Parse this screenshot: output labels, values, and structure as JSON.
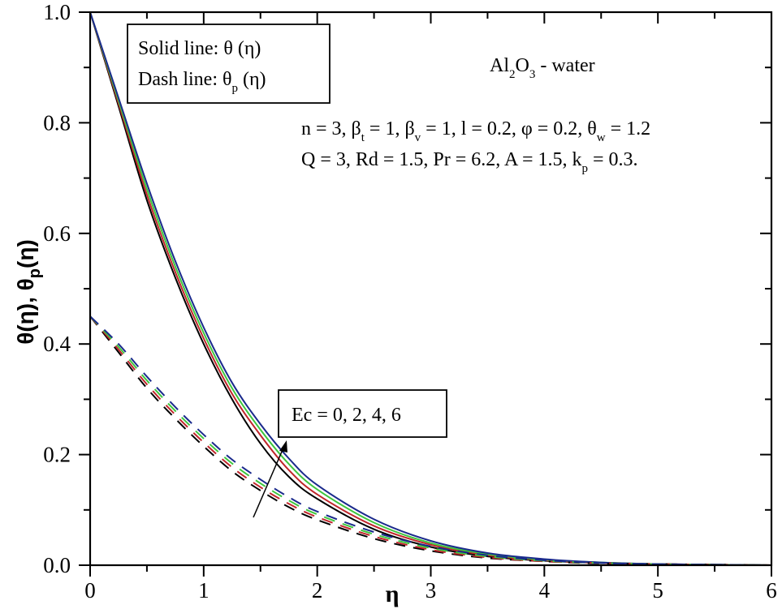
{
  "chart_data": {
    "type": "line",
    "title": "",
    "xlabel": "η",
    "ylabel": "θ(η), θp(η)",
    "xlim": [
      0,
      6
    ],
    "ylim": [
      0.0,
      1.0
    ],
    "x_ticks": [
      "0",
      "1",
      "2",
      "3",
      "4",
      "5",
      "6"
    ],
    "y_ticks": [
      "0.0",
      "0.2",
      "0.4",
      "0.6",
      "0.8",
      "1.0"
    ],
    "grid": false,
    "x": [
      0,
      0.25,
      0.5,
      0.75,
      1.0,
      1.25,
      1.5,
      1.75,
      2.0,
      2.5,
      3.0,
      3.5,
      4.0,
      4.5,
      5.0,
      5.5,
      6.0
    ],
    "series": [
      {
        "name": "θ(η), Ec = 0",
        "style": "solid",
        "color": "#000000",
        "values": [
          1.0,
          0.83,
          0.66,
          0.52,
          0.4,
          0.3,
          0.22,
          0.16,
          0.12,
          0.065,
          0.033,
          0.016,
          0.008,
          0.004,
          0.002,
          0.001,
          0.0
        ]
      },
      {
        "name": "θ(η), Ec = 2",
        "style": "solid",
        "color": "#c0262b",
        "values": [
          1.0,
          0.835,
          0.67,
          0.53,
          0.41,
          0.31,
          0.235,
          0.172,
          0.128,
          0.071,
          0.037,
          0.018,
          0.009,
          0.004,
          0.002,
          0.001,
          0.0
        ]
      },
      {
        "name": "θ(η), Ec = 4",
        "style": "solid",
        "color": "#3ec63e",
        "values": [
          1.0,
          0.84,
          0.68,
          0.54,
          0.42,
          0.32,
          0.245,
          0.183,
          0.137,
          0.077,
          0.04,
          0.02,
          0.01,
          0.005,
          0.002,
          0.001,
          0.0
        ]
      },
      {
        "name": "θ(η), Ec = 6",
        "style": "solid",
        "color": "#1a2a8c",
        "values": [
          1.0,
          0.845,
          0.69,
          0.55,
          0.43,
          0.33,
          0.255,
          0.193,
          0.145,
          0.083,
          0.044,
          0.022,
          0.011,
          0.005,
          0.002,
          0.001,
          0.0
        ]
      },
      {
        "name": "θp(η), Ec = 0",
        "style": "dash",
        "color": "#000000",
        "values": [
          0.45,
          0.385,
          0.32,
          0.265,
          0.215,
          0.17,
          0.135,
          0.105,
          0.082,
          0.048,
          0.026,
          0.013,
          0.007,
          0.003,
          0.002,
          0.001,
          0.0
        ]
      },
      {
        "name": "θp(η), Ec = 2",
        "style": "dash",
        "color": "#c0262b",
        "values": [
          0.45,
          0.39,
          0.327,
          0.272,
          0.222,
          0.177,
          0.141,
          0.111,
          0.087,
          0.052,
          0.028,
          0.014,
          0.007,
          0.004,
          0.002,
          0.001,
          0.0
        ]
      },
      {
        "name": "θp(η), Ec = 4",
        "style": "dash",
        "color": "#3ec63e",
        "values": [
          0.45,
          0.395,
          0.334,
          0.279,
          0.229,
          0.184,
          0.148,
          0.117,
          0.092,
          0.056,
          0.031,
          0.016,
          0.008,
          0.004,
          0.002,
          0.001,
          0.0
        ]
      },
      {
        "name": "θp(η), Ec = 6",
        "style": "dash",
        "color": "#1a2a8c",
        "values": [
          0.45,
          0.4,
          0.341,
          0.286,
          0.236,
          0.191,
          0.155,
          0.123,
          0.097,
          0.06,
          0.034,
          0.018,
          0.009,
          0.004,
          0.002,
          0.001,
          0.0
        ]
      }
    ],
    "legend_box": {
      "line1": "Solid line:  θ (η)",
      "line2": "Dash  line: θp (η)"
    },
    "annotations": [
      "Al2O3 - water",
      "n = 3, βt = 1, βv = 1, l = 0.2, φ = 0.2, θw = 1.2",
      "Q = 3, Rd = 1.5, Pr = 6.2, A = 1.5, kp = 0.3.",
      "Ec = 0, 2, 4, 6"
    ],
    "arrow": {
      "from": [
        1.45,
        0.09
      ],
      "to": [
        1.72,
        0.21
      ],
      "meaning": "increasing Ec"
    }
  },
  "labels": {
    "x_axis": "η",
    "y_axis_theta": "θ(η), θ",
    "y_axis_p": "p",
    "y_axis_end": "(η)",
    "legend": {
      "solid_prefix": "Solid line:  θ (η)",
      "dash_prefix": "Dash  line: θ",
      "dash_sub": "p",
      "dash_suffix": " (η)"
    },
    "fluid": {
      "a": "Al",
      "a_sub": "2",
      "b": "O",
      "b_sub": "3",
      "rest": " - water"
    },
    "params1": {
      "p1": "n = 3, β",
      "s1": "t",
      "p2": " = 1, β",
      "s2": "v",
      "p3": " = 1, l = 0.2, φ = 0.2, θ",
      "s3": "w",
      "p4": " = 1.2"
    },
    "params2": {
      "p1": "Q = 3, Rd = 1.5, Pr = 6.2, A = 1.5, k",
      "s1": "p",
      "p2": " = 0.3."
    },
    "ec_box": "Ec = 0, 2, 4, 6"
  }
}
